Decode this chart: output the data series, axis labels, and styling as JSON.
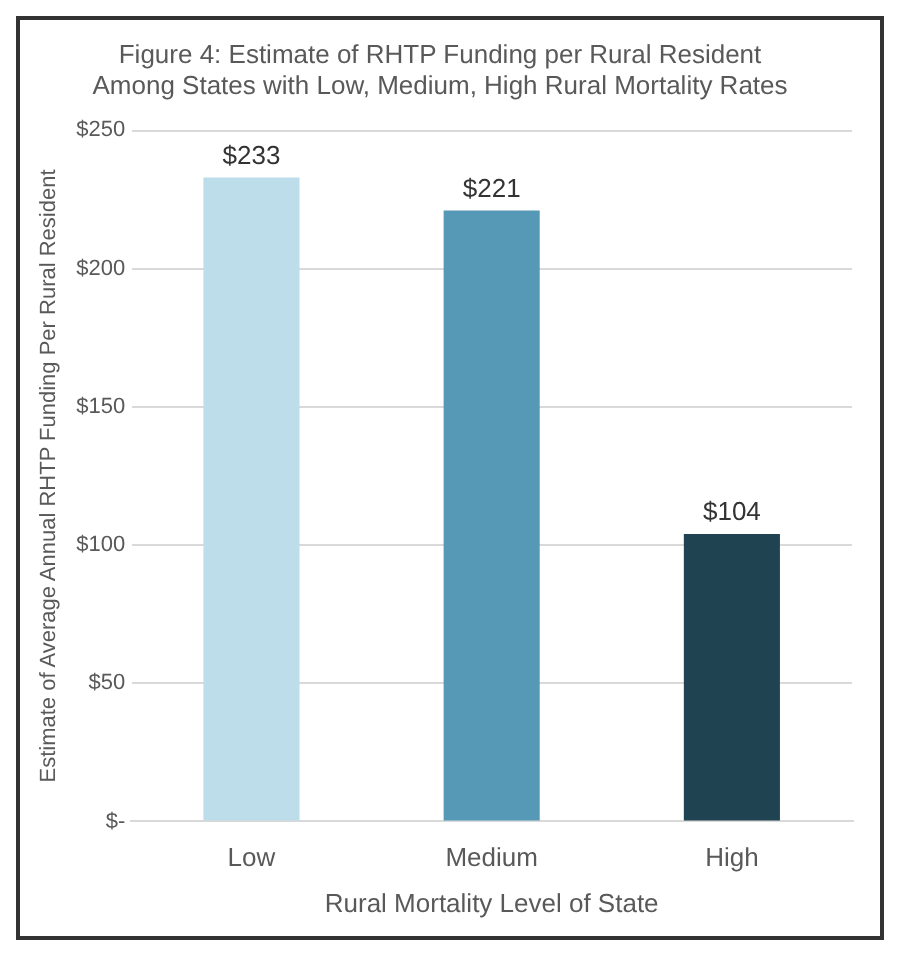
{
  "chart_data": {
    "type": "bar",
    "title": "Figure 4: Estimate of RHTP Funding per Rural Resident\nAmong States with Low, Medium, High Rural Mortality Rates",
    "xlabel": "Rural Mortality Level of State",
    "ylabel": "Estimate of Average Annual RHTP Funding Per Rural Resident",
    "categories": [
      "Low",
      "Medium",
      "High"
    ],
    "values": [
      233,
      221,
      104
    ],
    "colors": [
      "#bcdde9",
      "#5699b6",
      "#1f4350"
    ],
    "value_labels": [
      "$233",
      "$221",
      "$104"
    ],
    "ylim": [
      0,
      250
    ],
    "yticks": [
      {
        "value": 0,
        "label": "$-"
      },
      {
        "value": 50,
        "label": "$50"
      },
      {
        "value": 100,
        "label": "$100"
      },
      {
        "value": 150,
        "label": "$150"
      },
      {
        "value": 200,
        "label": "$200"
      },
      {
        "value": 250,
        "label": "$250"
      }
    ],
    "grid": "y",
    "legend": false
  }
}
